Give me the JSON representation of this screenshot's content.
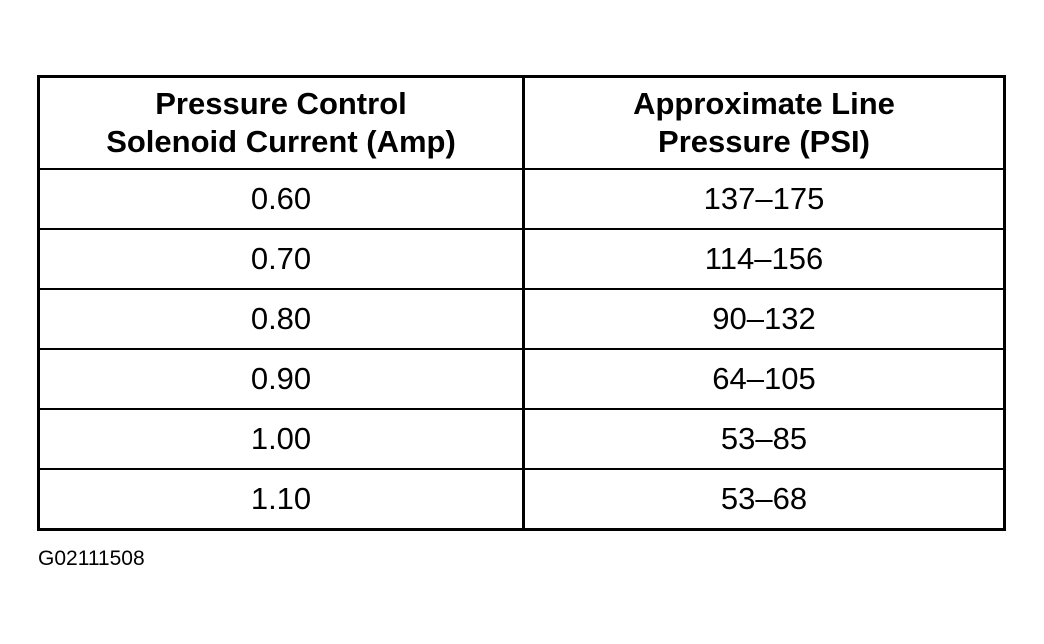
{
  "table": {
    "headers": [
      [
        "Pressure Control",
        "Solenoid Current (Amp)"
      ],
      [
        "Approximate Line",
        "Pressure (PSI)"
      ]
    ],
    "rows": [
      [
        "0.60",
        "137–175"
      ],
      [
        "0.70",
        "114–156"
      ],
      [
        "0.80",
        "90–132"
      ],
      [
        "0.90",
        "64–105"
      ],
      [
        "1.00",
        "53–85"
      ],
      [
        "1.10",
        "53–68"
      ]
    ]
  },
  "caption": "G02111508"
}
